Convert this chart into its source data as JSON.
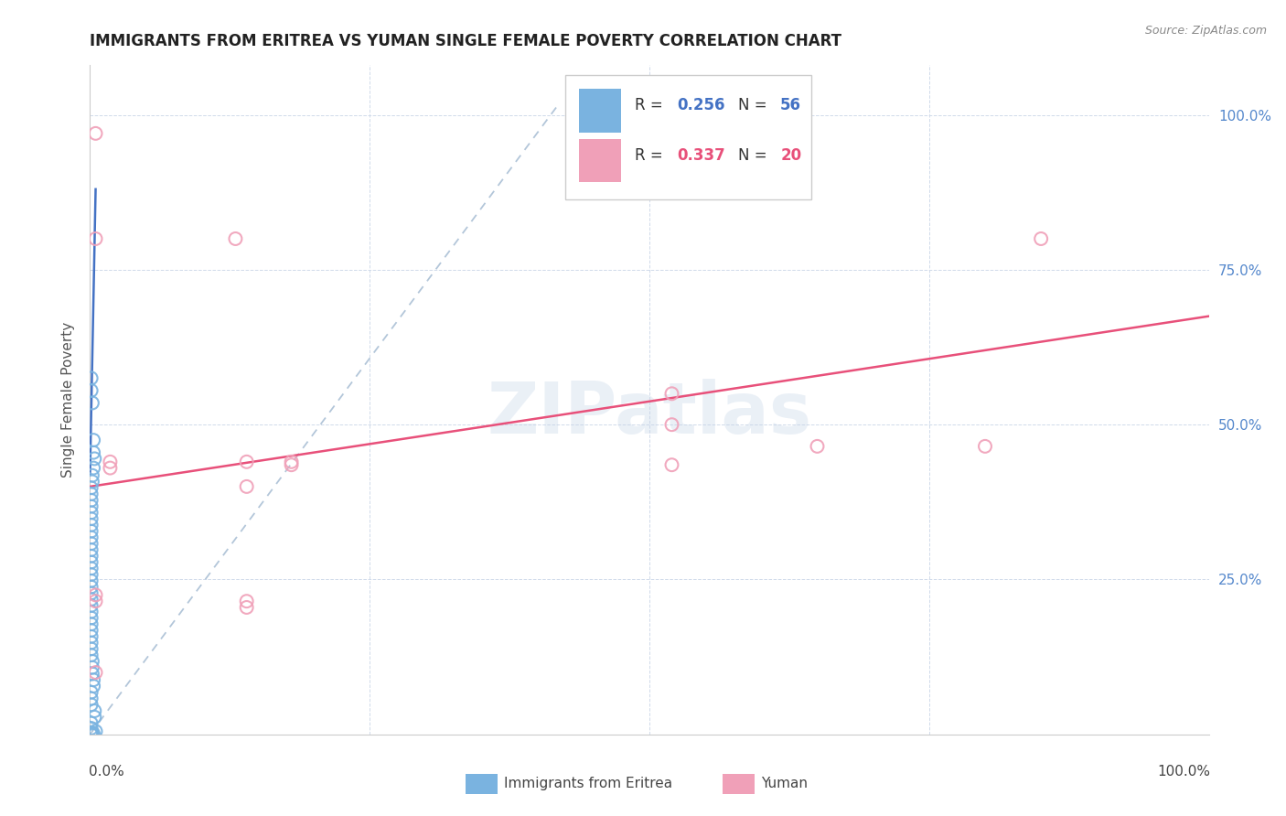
{
  "title": "IMMIGRANTS FROM ERITREA VS YUMAN SINGLE FEMALE POVERTY CORRELATION CHART",
  "source": "Source: ZipAtlas.com",
  "ylabel": "Single Female Poverty",
  "ytick_labels": [
    "100.0%",
    "75.0%",
    "50.0%",
    "25.0%"
  ],
  "ytick_values": [
    1.0,
    0.75,
    0.5,
    0.25
  ],
  "legend_label1": "Immigrants from Eritrea",
  "legend_label2": "Yuman",
  "watermark": "ZIPatlas",
  "blue_scatter_color": "#7ab3e0",
  "pink_scatter_color": "#f0a0b8",
  "blue_line_color": "#4472c4",
  "pink_line_color": "#e8507a",
  "dashed_line_color": "#a0b8d0",
  "right_tick_color": "#5588cc",
  "xlim": [
    0.0,
    1.0
  ],
  "ylim": [
    0.0,
    1.08
  ],
  "blue_scatter": [
    [
      0.001,
      0.575
    ],
    [
      0.001,
      0.555
    ],
    [
      0.002,
      0.535
    ],
    [
      0.003,
      0.475
    ],
    [
      0.003,
      0.455
    ],
    [
      0.004,
      0.445
    ],
    [
      0.003,
      0.43
    ],
    [
      0.002,
      0.418
    ],
    [
      0.002,
      0.408
    ],
    [
      0.001,
      0.398
    ],
    [
      0.001,
      0.388
    ],
    [
      0.001,
      0.378
    ],
    [
      0.001,
      0.368
    ],
    [
      0.001,
      0.358
    ],
    [
      0.001,
      0.348
    ],
    [
      0.001,
      0.338
    ],
    [
      0.001,
      0.328
    ],
    [
      0.001,
      0.318
    ],
    [
      0.001,
      0.308
    ],
    [
      0.001,
      0.298
    ],
    [
      0.001,
      0.288
    ],
    [
      0.001,
      0.278
    ],
    [
      0.001,
      0.268
    ],
    [
      0.001,
      0.258
    ],
    [
      0.001,
      0.248
    ],
    [
      0.001,
      0.238
    ],
    [
      0.001,
      0.228
    ],
    [
      0.001,
      0.218
    ],
    [
      0.001,
      0.208
    ],
    [
      0.001,
      0.198
    ],
    [
      0.001,
      0.188
    ],
    [
      0.001,
      0.178
    ],
    [
      0.001,
      0.168
    ],
    [
      0.001,
      0.158
    ],
    [
      0.001,
      0.148
    ],
    [
      0.001,
      0.138
    ],
    [
      0.001,
      0.128
    ],
    [
      0.002,
      0.118
    ],
    [
      0.002,
      0.108
    ],
    [
      0.002,
      0.098
    ],
    [
      0.003,
      0.088
    ],
    [
      0.003,
      0.078
    ],
    [
      0.001,
      0.068
    ],
    [
      0.001,
      0.058
    ],
    [
      0.001,
      0.048
    ],
    [
      0.004,
      0.038
    ],
    [
      0.004,
      0.028
    ],
    [
      0.001,
      0.018
    ],
    [
      0.001,
      0.01
    ],
    [
      0.005,
      0.005
    ],
    [
      0.001,
      0.003
    ],
    [
      0.002,
      0.002
    ],
    [
      0.003,
      0.001
    ],
    [
      0.001,
      0.0
    ],
    [
      0.001,
      0.0
    ]
  ],
  "pink_scatter": [
    [
      0.005,
      0.97
    ],
    [
      0.005,
      0.8
    ],
    [
      0.13,
      0.8
    ],
    [
      0.85,
      0.8
    ],
    [
      0.14,
      0.44
    ],
    [
      0.18,
      0.44
    ],
    [
      0.52,
      0.55
    ],
    [
      0.52,
      0.5
    ],
    [
      0.65,
      0.465
    ],
    [
      0.8,
      0.465
    ],
    [
      0.18,
      0.435
    ],
    [
      0.52,
      0.435
    ],
    [
      0.018,
      0.44
    ],
    [
      0.018,
      0.43
    ],
    [
      0.14,
      0.4
    ],
    [
      0.14,
      0.215
    ],
    [
      0.14,
      0.205
    ],
    [
      0.005,
      0.225
    ],
    [
      0.005,
      0.215
    ],
    [
      0.005,
      0.1
    ]
  ],
  "blue_trend_x": [
    0.0,
    0.005
  ],
  "blue_trend_y": [
    0.42,
    0.88
  ],
  "pink_trend_x": [
    0.0,
    1.0
  ],
  "pink_trend_y": [
    0.4,
    0.675
  ],
  "dashed_line_x": [
    0.0,
    0.42
  ],
  "dashed_line_y": [
    0.0,
    1.02
  ]
}
